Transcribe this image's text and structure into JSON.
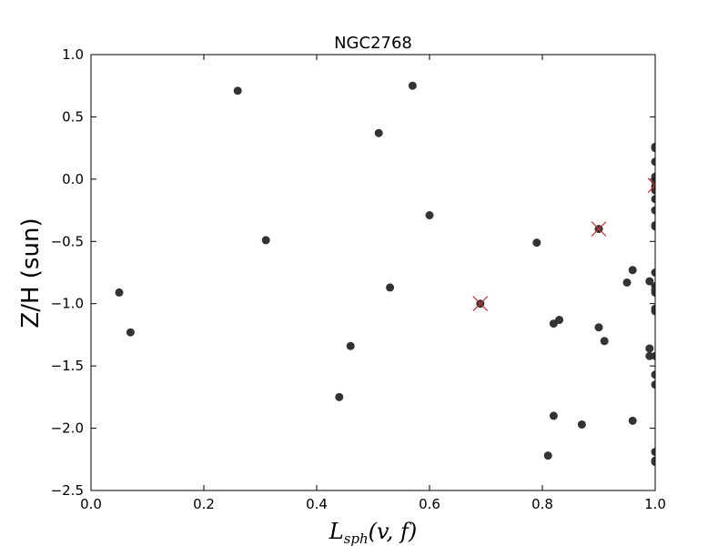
{
  "chart_data": {
    "type": "scatter",
    "title": "NGC2768",
    "xlabel": "L_{sph}(v, f)",
    "ylabel": "Z/H (sun)",
    "xlim": [
      0.0,
      1.0
    ],
    "ylim": [
      -2.5,
      1.0
    ],
    "x_ticks": [
      0.0,
      0.2,
      0.4,
      0.6,
      0.8,
      1.0
    ],
    "x_tick_labels": [
      "0.0",
      "0.2",
      "0.4",
      "0.6",
      "0.8",
      "1.0"
    ],
    "y_ticks": [
      1.0,
      0.5,
      0.0,
      -0.5,
      -1.0,
      -1.5,
      -2.0,
      -2.5
    ],
    "y_tick_labels": [
      "1.0",
      "0.5",
      "0.0",
      "−0.5",
      "−1.0",
      "−1.5",
      "−2.0",
      "−2.5"
    ],
    "grid": false,
    "colors": {
      "point": "#333333",
      "marker_cross": "#cc3333",
      "axes": "#000000"
    },
    "series": [
      {
        "marker": "circle",
        "points": [
          [
            0.05,
            -0.91
          ],
          [
            0.07,
            -1.23
          ],
          [
            0.26,
            0.71
          ],
          [
            0.31,
            -0.49
          ],
          [
            0.44,
            -1.75
          ],
          [
            0.46,
            -1.34
          ],
          [
            0.51,
            0.37
          ],
          [
            0.53,
            -0.87
          ],
          [
            0.57,
            0.75
          ],
          [
            0.6,
            -0.29
          ],
          [
            0.69,
            -1.0
          ],
          [
            0.79,
            -0.51
          ],
          [
            0.81,
            -2.22
          ],
          [
            0.82,
            -1.16
          ],
          [
            0.82,
            -1.9
          ],
          [
            0.83,
            -1.13
          ],
          [
            0.87,
            -1.97
          ],
          [
            0.9,
            -0.4
          ],
          [
            0.9,
            -1.19
          ],
          [
            0.91,
            -1.3
          ],
          [
            0.95,
            -0.83
          ],
          [
            0.96,
            -0.73
          ],
          [
            0.96,
            -1.94
          ],
          [
            0.99,
            -0.82
          ],
          [
            0.99,
            -1.36
          ],
          [
            0.99,
            -1.42
          ],
          [
            1.0,
            0.26
          ],
          [
            1.0,
            0.25
          ],
          [
            1.0,
            0.14
          ],
          [
            1.0,
            0.02
          ],
          [
            1.0,
            -0.02
          ],
          [
            1.0,
            -0.06
          ],
          [
            1.0,
            -0.09
          ],
          [
            1.0,
            -0.16
          ],
          [
            1.0,
            -0.25
          ],
          [
            1.0,
            -0.37
          ],
          [
            1.0,
            -0.38
          ],
          [
            1.0,
            -0.75
          ],
          [
            1.0,
            -0.86
          ],
          [
            1.0,
            -0.89
          ],
          [
            1.0,
            -0.91
          ],
          [
            1.0,
            -1.04
          ],
          [
            1.0,
            -1.06
          ],
          [
            1.0,
            -1.42
          ],
          [
            1.0,
            -1.57
          ],
          [
            1.0,
            -1.65
          ],
          [
            1.0,
            -2.19
          ],
          [
            1.0,
            -2.26
          ],
          [
            1.0,
            -2.27
          ]
        ]
      },
      {
        "marker": "x",
        "points": [
          [
            0.69,
            -1.0
          ],
          [
            0.9,
            -0.4
          ],
          [
            1.0,
            -0.05
          ]
        ]
      }
    ]
  }
}
